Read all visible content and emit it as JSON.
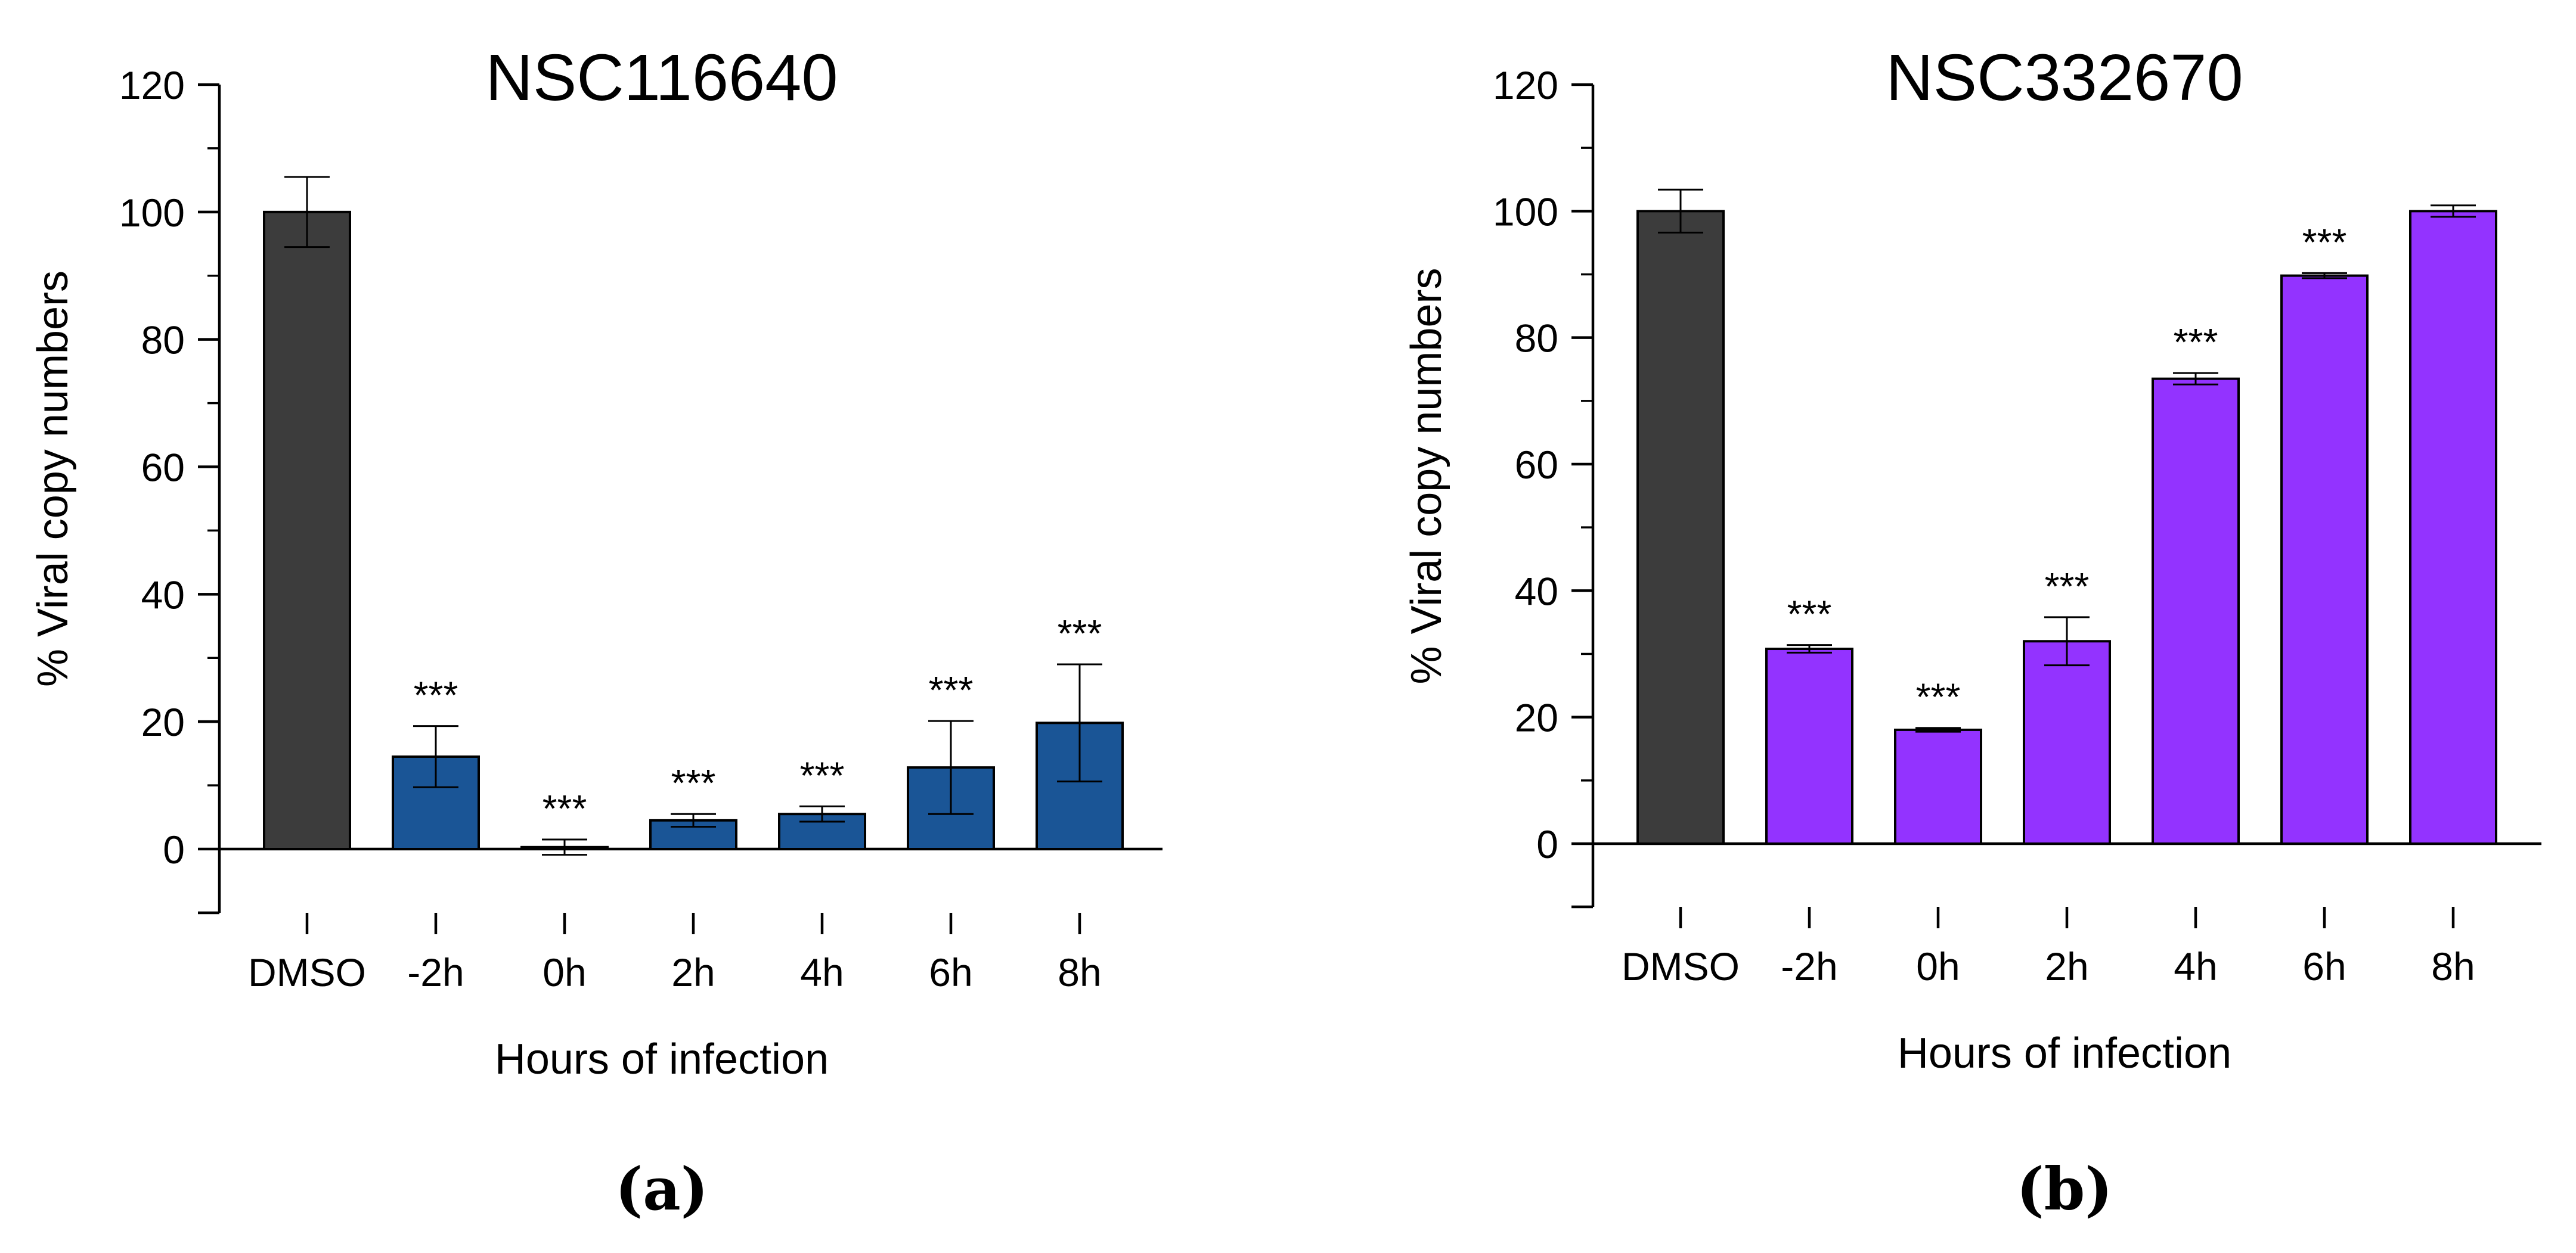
{
  "chart_data": [
    {
      "type": "bar",
      "title": "NSC116640",
      "panel_label": "(a)",
      "xlabel": "Hours of infection",
      "ylabel": "% Viral copy numbers",
      "ylim": [
        -10,
        120
      ],
      "yticks": [
        0,
        20,
        40,
        60,
        80,
        100,
        120
      ],
      "categories": [
        "DMSO",
        "-2h",
        "0h",
        "2h",
        "4h",
        "6h",
        "8h"
      ],
      "values": [
        100,
        14.5,
        0.3,
        4.5,
        5.5,
        12.8,
        19.8
      ],
      "errors": [
        5.5,
        4.8,
        1.2,
        1.0,
        1.2,
        7.3,
        9.2
      ],
      "significance": [
        "",
        "***",
        "***",
        "***",
        "***",
        "***",
        "***"
      ],
      "colors": [
        "#3c3c3c",
        "#1a5596",
        "#1a5596",
        "#1a5596",
        "#1a5596",
        "#1a5596",
        "#1a5596"
      ]
    },
    {
      "type": "bar",
      "title": "NSC332670",
      "panel_label": "(b)",
      "xlabel": "Hours of infection",
      "ylabel": "% Viral copy numbers",
      "ylim": [
        -10,
        120
      ],
      "yticks": [
        0,
        20,
        40,
        60,
        80,
        100,
        120
      ],
      "categories": [
        "DMSO",
        "-2h",
        "0h",
        "2h",
        "4h",
        "6h",
        "8h"
      ],
      "values": [
        100,
        30.8,
        18.0,
        32.0,
        73.5,
        89.8,
        100
      ],
      "errors": [
        3.4,
        0.6,
        0.3,
        3.8,
        0.9,
        0.4,
        0.9
      ],
      "significance": [
        "",
        "***",
        "***",
        "***",
        "***",
        "***",
        ""
      ],
      "colors": [
        "#3c3c3c",
        "#9333ff",
        "#9333ff",
        "#9333ff",
        "#9333ff",
        "#9333ff",
        "#9333ff"
      ]
    }
  ]
}
